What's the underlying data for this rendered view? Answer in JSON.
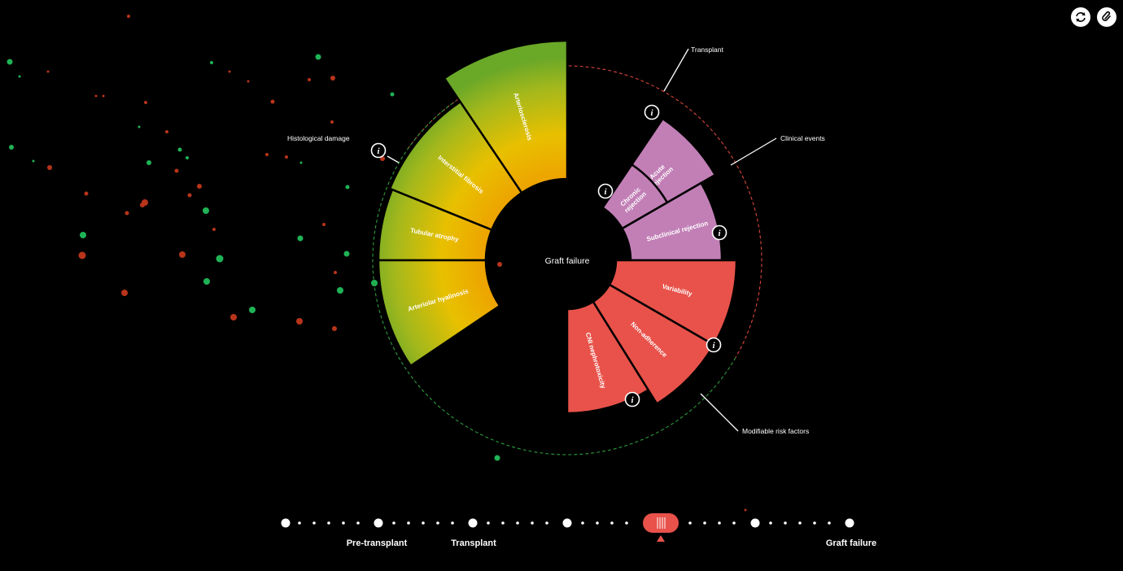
{
  "center_label": "Graft failure",
  "callouts": {
    "transplant": "Transplant",
    "clinical_events": "Clinical events",
    "histological_damage": "Histological damage",
    "modifiable_risk_factors": "Modifiable risk factors"
  },
  "segments": {
    "arteriosclerosis": "Arteriosclerosis",
    "interstitial_fibrosis": "Interstitial fibrosis",
    "tubular_atrophy": "Tubular atrophy",
    "arteriolar_hyalinosis": "Arteriolar hyalinosis",
    "acute_rejection_1": "Acute",
    "acute_rejection_2": "rejection",
    "chronic_rejection_1": "Chronic",
    "chronic_rejection_2": "rejection",
    "subclinical_rejection": "Subclinical rejection",
    "variability": "Variability",
    "non_adherence": "Non-adherence",
    "cni_nephrotoxicity": "CNI nephrotoxicity"
  },
  "info_icon_glyph": "i",
  "timeline": {
    "labels": {
      "pre_transplant": "Pre-transplant",
      "transplant": "Transplant",
      "graft_failure": "Graft failure"
    }
  },
  "colors": {
    "background": "#000000",
    "histology_green": "#6aa828",
    "histology_yellow": "#e8c000",
    "histology_orange": "#eea000",
    "clinical_purple": "#c27fb6",
    "risk_red": "#e8524a",
    "particle_green": "#1fb356",
    "particle_red": "#b8341a",
    "ring_red": "#d9453c",
    "ring_green": "#2e9a3e"
  },
  "icons": {
    "refresh": "refresh-icon",
    "link": "link-icon",
    "info": "info-icon",
    "slider": "timeline-slider-handle"
  }
}
